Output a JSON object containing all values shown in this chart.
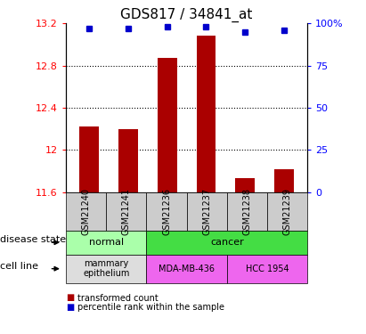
{
  "title": "GDS817 / 34841_at",
  "samples": [
    "GSM21240",
    "GSM21241",
    "GSM21236",
    "GSM21237",
    "GSM21238",
    "GSM21239"
  ],
  "bar_values": [
    12.22,
    12.2,
    12.87,
    13.08,
    11.73,
    11.82
  ],
  "percentile_values": [
    97,
    97,
    98,
    98,
    95,
    96
  ],
  "y_min": 11.6,
  "y_max": 13.2,
  "y_ticks": [
    11.6,
    12.0,
    12.4,
    12.8,
    13.2
  ],
  "y_tick_labels": [
    "11.6",
    "12",
    "12.4",
    "12.8",
    "13.2"
  ],
  "y_right_ticks": [
    0,
    25,
    50,
    75,
    100
  ],
  "y_right_tick_labels": [
    "0",
    "25",
    "50",
    "75",
    "100%"
  ],
  "dotted_lines": [
    12.0,
    12.4,
    12.8
  ],
  "bar_color": "#aa0000",
  "percentile_color": "#0000cc",
  "bar_baseline": 11.6,
  "disease_states": [
    {
      "label": "normal",
      "span": [
        0,
        2
      ],
      "color": "#aaffaa"
    },
    {
      "label": "cancer",
      "span": [
        2,
        6
      ],
      "color": "#44dd44"
    }
  ],
  "cell_lines": [
    {
      "label": "mammary\nepithelium",
      "span": [
        0,
        2
      ],
      "color": "#dddddd"
    },
    {
      "label": "MDA-MB-436",
      "span": [
        2,
        4
      ],
      "color": "#ee66ee"
    },
    {
      "label": "HCC 1954",
      "span": [
        4,
        6
      ],
      "color": "#ee66ee"
    }
  ],
  "tick_label_row_color": "#cccccc",
  "left_label_disease": "disease state",
  "left_label_cell": "cell line",
  "legend_red": "transformed count",
  "legend_blue": "percentile rank within the sample",
  "background_color": "#ffffff",
  "fig_width": 4.11,
  "fig_height": 3.75
}
